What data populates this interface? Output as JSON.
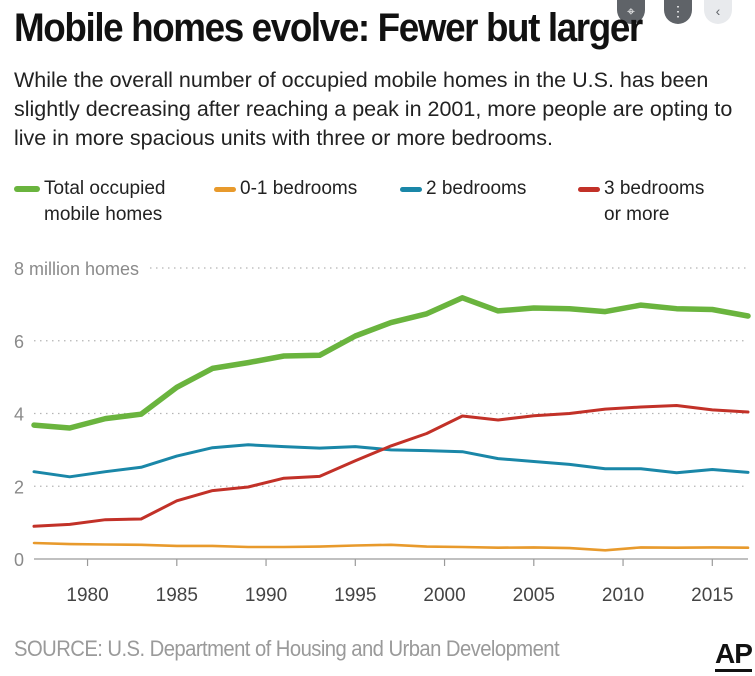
{
  "title": "Mobile homes evolve: Fewer but larger",
  "subtitle": "While the overall number of occupied mobile homes in the U.S. has been slightly decreasing after reaching a peak in 2001, more people are opting to live in more spacious units with three or more bedrooms.",
  "source": "SOURCE: U.S. Department of Housing and Urban Development",
  "logo": "AP",
  "overlay_icons": [
    "lens-search-icon",
    "more-vert-icon",
    "chevron-left-icon"
  ],
  "chart_data": {
    "type": "line",
    "title": "Mobile homes evolve: Fewer but larger",
    "ylabel": "8 million homes",
    "xlim": [
      1977,
      2017
    ],
    "ylim": [
      0,
      8
    ],
    "x_ticks": [
      1980,
      1985,
      1990,
      1995,
      2000,
      2005,
      2010,
      2015
    ],
    "y_ticks": [
      {
        "value": 0,
        "label": "0"
      },
      {
        "value": 2,
        "label": "2"
      },
      {
        "value": 4,
        "label": "4"
      },
      {
        "value": 6,
        "label": "6"
      },
      {
        "value": 8,
        "label": "8 million homes"
      }
    ],
    "grid": "horizontal dotted",
    "legend_position": "top",
    "x": [
      1977,
      1979,
      1981,
      1983,
      1985,
      1987,
      1989,
      1991,
      1993,
      1995,
      1997,
      1999,
      2001,
      2003,
      2005,
      2007,
      2009,
      2011,
      2013,
      2015,
      2017
    ],
    "series": [
      {
        "name": "Total occupied\nmobile homes",
        "color": "#6ab43e",
        "width": 5.5,
        "values": [
          3.68,
          3.6,
          3.86,
          3.98,
          4.72,
          5.24,
          5.4,
          5.58,
          5.6,
          6.13,
          6.5,
          6.74,
          7.18,
          6.82,
          6.9,
          6.88,
          6.8,
          6.98,
          6.88,
          6.86,
          6.68
        ]
      },
      {
        "name": "0-1 bedrooms",
        "color": "#e89a2c",
        "width": 2.6,
        "values": [
          0.44,
          0.41,
          0.4,
          0.39,
          0.36,
          0.36,
          0.33,
          0.33,
          0.34,
          0.37,
          0.39,
          0.34,
          0.33,
          0.31,
          0.32,
          0.3,
          0.24,
          0.32,
          0.31,
          0.32,
          0.31
        ]
      },
      {
        "name": "2 bedrooms",
        "color": "#1a87a8",
        "width": 3,
        "values": [
          2.4,
          2.26,
          2.4,
          2.52,
          2.83,
          3.06,
          3.14,
          3.09,
          3.05,
          3.09,
          3.0,
          2.98,
          2.95,
          2.76,
          2.68,
          2.6,
          2.48,
          2.48,
          2.37,
          2.46,
          2.38
        ]
      },
      {
        "name": "3 bedrooms\nor more",
        "color": "#c23128",
        "width": 3,
        "values": [
          0.9,
          0.95,
          1.08,
          1.1,
          1.6,
          1.88,
          1.98,
          2.22,
          2.27,
          2.7,
          3.11,
          3.45,
          3.93,
          3.82,
          3.94,
          4.0,
          4.12,
          4.18,
          4.22,
          4.1,
          4.04
        ]
      }
    ]
  }
}
